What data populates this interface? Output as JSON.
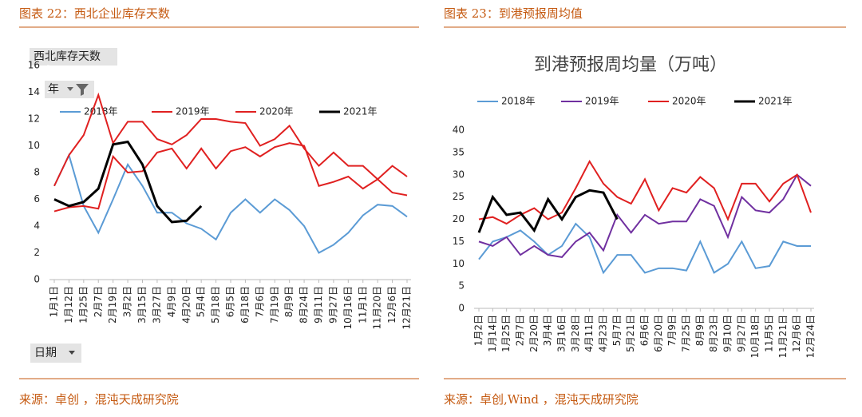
{
  "headers": [
    "图表 22：西北企业库存天数",
    "图表 23：到港预报周均值"
  ],
  "sources": [
    "来源：卓创 ，混沌天成研究院",
    "来源：卓创,Wind ，混沌天成研究院"
  ],
  "chart_data": [
    {
      "type": "line",
      "title": "西北库存天数",
      "buttons": [
        "年",
        "日期"
      ],
      "legend": "top",
      "categories": [
        "1月1日",
        "1月12日",
        "1月25日",
        "2月7日",
        "2月19日",
        "3月2日",
        "3月15日",
        "3月27日",
        "4月9日",
        "4月20日",
        "5月4日",
        "5月18日",
        "6月5日",
        "6月18日",
        "7月6日",
        "7月19日",
        "8月9日",
        "8月24日",
        "9月11日",
        "9月27日",
        "10月16日",
        "11月1日",
        "11月20日",
        "12月6日",
        "12月21日"
      ],
      "ylim": [
        0,
        16
      ],
      "yticks": [
        0,
        2,
        4,
        6,
        8,
        10,
        12,
        14,
        16
      ],
      "series": [
        {
          "name": "2018年",
          "color": "#5b9bd5",
          "values": [
            7,
            9.3,
            5.5,
            3.5,
            6,
            8.6,
            7,
            5,
            5,
            4.2,
            3.8,
            3,
            5,
            6,
            5,
            6,
            5.2,
            4,
            2,
            2.6,
            3.5,
            4.8,
            5.6,
            5.5,
            4.7
          ]
        },
        {
          "name": "2019年",
          "color": "#e02020",
          "values": [
            5.1,
            5.4,
            5.5,
            5.3,
            9.2,
            8,
            8.1,
            9.5,
            9.8,
            8.3,
            9.8,
            8.3,
            9.6,
            9.9,
            9.2,
            9.9,
            10.2,
            10,
            7,
            7.3,
            7.7,
            6.8,
            7.5,
            6.5,
            6.3
          ]
        },
        {
          "name": "2020年",
          "color": "#e02020",
          "values": [
            7,
            9.3,
            10.8,
            13.8,
            10.2,
            11.8,
            11.8,
            10.5,
            10.1,
            10.8,
            12,
            12,
            11.8,
            11.7,
            10,
            10.5,
            11.5,
            9.8,
            8.5,
            9.5,
            8.5,
            8.5,
            7.5,
            8.5,
            7.7
          ]
        },
        {
          "name": "2021年",
          "color": "#000000",
          "values": [
            6,
            5.5,
            5.8,
            6.8,
            10.1,
            10.3,
            8.6,
            5.5,
            4.3,
            4.4,
            5.5,
            null,
            null,
            null,
            null,
            null,
            null,
            null,
            null,
            null,
            null,
            null,
            null,
            null,
            null
          ]
        }
      ]
    },
    {
      "type": "line",
      "title": "到港预报周均量（万吨）",
      "legend": "top",
      "categories": [
        "1月2日",
        "1月14日",
        "1月25日",
        "2月7日",
        "2月20日",
        "3月4日",
        "3月16日",
        "3月28日",
        "4月11日",
        "4月23日",
        "5月7日",
        "5月21日",
        "6月6日",
        "6月20日",
        "7月9日",
        "7月25日",
        "8月9日",
        "8月23日",
        "9月10日",
        "9月27日",
        "10月18日",
        "11月5日",
        "11月21日",
        "12月6日",
        "12月24日"
      ],
      "ylim": [
        0,
        40
      ],
      "yticks": [
        0,
        5,
        10,
        15,
        20,
        25,
        30,
        35,
        40
      ],
      "series": [
        {
          "name": "2018年",
          "color": "#5b9bd5",
          "values": [
            11,
            15,
            16,
            17.5,
            15,
            12,
            14,
            19,
            16,
            8,
            12,
            12,
            8,
            9,
            9,
            8.5,
            15,
            8,
            10,
            15,
            9,
            9.5,
            15,
            14,
            14
          ]
        },
        {
          "name": "2019年",
          "color": "#7030a0",
          "values": [
            15,
            14,
            16,
            12,
            14,
            12,
            11.5,
            15,
            17,
            13,
            21,
            17,
            21,
            19,
            19.5,
            19.5,
            24.5,
            23,
            16,
            25,
            22,
            21.5,
            24.5,
            30,
            27.5
          ]
        },
        {
          "name": "2020年",
          "color": "#e02020",
          "values": [
            20,
            20.5,
            19,
            21,
            22.5,
            20,
            21.5,
            27,
            33,
            28,
            25,
            23.5,
            29,
            22,
            27,
            26,
            29.5,
            27,
            20,
            28,
            28,
            24,
            28,
            30,
            21.5
          ]
        },
        {
          "name": "2021年",
          "color": "#000000",
          "values": [
            17,
            25,
            21,
            21.5,
            17.5,
            24.5,
            20,
            25,
            26.5,
            26,
            20,
            null,
            null,
            null,
            null,
            null,
            null,
            null,
            null,
            null,
            null,
            null,
            null,
            null,
            null
          ]
        }
      ]
    }
  ]
}
